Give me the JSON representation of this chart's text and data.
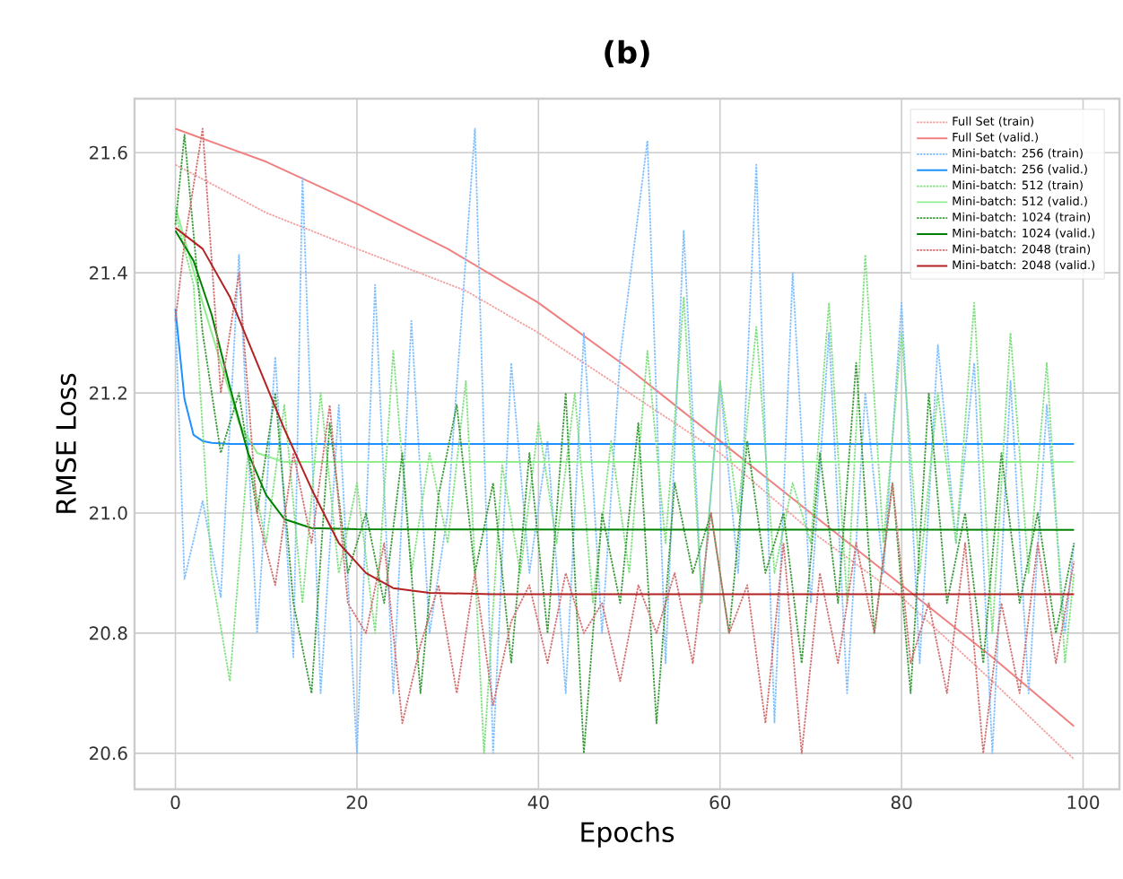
{
  "chart_data": {
    "type": "line",
    "title": "**(b)**",
    "xlabel": "Epochs",
    "ylabel": "RMSE Loss",
    "xlim": [
      -4.5,
      104
    ],
    "ylim": [
      20.54,
      21.69
    ],
    "xticks": [
      0,
      20,
      40,
      60,
      80,
      100
    ],
    "yticks": [
      20.6,
      20.8,
      {
        "value": 21.0,
        "label": "21.0"
      },
      21.2,
      21.4,
      21.6
    ],
    "grid": true,
    "legend": "top right",
    "marker": "none",
    "series": [
      {
        "name": "Full Set (train)",
        "color": "#f4a0a0",
        "line_style": "dotted",
        "x": [
          0,
          10,
          20,
          32,
          40,
          50,
          60,
          70,
          80,
          90,
          99
        ],
        "values": [
          21.58,
          21.5,
          21.44,
          21.37,
          21.3,
          21.2,
          21.1,
          20.97,
          20.86,
          20.72,
          20.59
        ]
      },
      {
        "name": "Full Set (valid.)",
        "color": "#f08080",
        "line_style": "solid",
        "x": [
          0,
          10,
          20,
          30,
          40,
          50,
          60,
          70,
          80,
          90,
          99
        ],
        "values": [
          21.64,
          21.585,
          21.515,
          21.44,
          21.35,
          21.24,
          21.12,
          21.0,
          20.88,
          20.76,
          20.645
        ]
      },
      {
        "name": "Mini-batch: 256 (train)",
        "color": "#7fbfff",
        "line_style": "dotted",
        "x": [
          0,
          1,
          3,
          5,
          7,
          9,
          11,
          13,
          14,
          16,
          18,
          20,
          22,
          24,
          26,
          28,
          30,
          33,
          35,
          37,
          39,
          41,
          43,
          45,
          47,
          49,
          52,
          54,
          56,
          58,
          60,
          62,
          64,
          66,
          68,
          70,
          72,
          74,
          76,
          78,
          80,
          82,
          84,
          86,
          88,
          90,
          92,
          94,
          96,
          98,
          99
        ],
        "values": [
          21.33,
          20.89,
          21.02,
          20.86,
          21.43,
          20.8,
          21.26,
          20.76,
          21.56,
          20.7,
          21.18,
          20.6,
          21.38,
          20.7,
          21.32,
          20.8,
          21.0,
          21.64,
          20.6,
          21.25,
          20.9,
          21.12,
          20.7,
          21.3,
          20.8,
          21.26,
          21.62,
          20.75,
          21.47,
          20.85,
          21.22,
          20.9,
          21.58,
          20.65,
          21.4,
          20.85,
          21.3,
          20.7,
          21.2,
          20.9,
          21.35,
          20.75,
          21.28,
          20.95,
          21.25,
          20.6,
          21.22,
          20.7,
          21.18,
          20.8,
          20.95
        ]
      },
      {
        "name": "Mini-batch: 256 (valid.)",
        "color": "#1e90ff",
        "line_style": "solid",
        "x": [
          0,
          1,
          2,
          3,
          4,
          6,
          99
        ],
        "values": [
          21.34,
          21.19,
          21.13,
          21.12,
          21.117,
          21.115,
          21.115
        ]
      },
      {
        "name": "Mini-batch: 512 (train)",
        "color": "#7ee07e",
        "line_style": "dotted",
        "x": [
          0,
          2,
          4,
          6,
          8,
          10,
          12,
          14,
          16,
          18,
          20,
          22,
          24,
          26,
          28,
          30,
          32,
          34,
          36,
          38,
          40,
          42,
          44,
          46,
          48,
          50,
          52,
          54,
          56,
          58,
          60,
          62,
          64,
          66,
          68,
          70,
          72,
          74,
          76,
          78,
          80,
          82,
          84,
          86,
          88,
          90,
          92,
          94,
          96,
          98,
          99
        ],
        "values": [
          21.5,
          21.38,
          20.9,
          20.72,
          21.1,
          20.95,
          21.18,
          20.85,
          21.2,
          20.9,
          21.05,
          20.8,
          21.27,
          20.9,
          21.1,
          20.95,
          21.22,
          20.6,
          21.08,
          20.9,
          21.15,
          20.95,
          21.2,
          20.85,
          21.12,
          20.9,
          21.27,
          20.95,
          21.36,
          20.85,
          21.22,
          21.0,
          21.31,
          20.9,
          21.05,
          20.95,
          21.35,
          20.85,
          21.43,
          20.95,
          21.3,
          20.9,
          21.2,
          20.95,
          21.35,
          20.8,
          21.3,
          20.9,
          21.25,
          20.75,
          20.9
        ]
      },
      {
        "name": "Mini-batch: 512 (valid.)",
        "color": "#90ee90",
        "line_style": "solid",
        "x": [
          0,
          3,
          5,
          7,
          9,
          12,
          99
        ],
        "values": [
          21.51,
          21.35,
          21.25,
          21.15,
          21.1,
          21.085,
          21.085
        ]
      },
      {
        "name": "Mini-batch: 1024 (train)",
        "color": "#3a9a3a",
        "line_style": "dotted",
        "x": [
          0,
          1,
          3,
          5,
          7,
          9,
          11,
          13,
          15,
          17,
          19,
          21,
          23,
          25,
          27,
          29,
          31,
          33,
          35,
          37,
          39,
          41,
          43,
          45,
          47,
          49,
          51,
          53,
          55,
          57,
          59,
          61,
          63,
          65,
          67,
          69,
          71,
          73,
          75,
          77,
          79,
          81,
          83,
          85,
          87,
          89,
          91,
          93,
          95,
          97,
          99
        ],
        "values": [
          21.48,
          21.63,
          21.3,
          21.1,
          21.2,
          21.0,
          21.2,
          20.85,
          20.7,
          21.15,
          20.9,
          21.0,
          20.85,
          21.1,
          20.7,
          21.03,
          21.18,
          20.9,
          21.05,
          20.75,
          21.1,
          20.8,
          21.2,
          20.6,
          21.0,
          20.85,
          21.15,
          20.65,
          21.05,
          20.9,
          21.0,
          20.8,
          21.12,
          20.9,
          21.0,
          20.75,
          21.1,
          20.85,
          21.25,
          20.8,
          21.05,
          20.7,
          21.2,
          20.85,
          21.0,
          20.75,
          21.1,
          20.85,
          21.0,
          20.8,
          20.95
        ]
      },
      {
        "name": "Mini-batch: 1024 (valid.)",
        "color": "#008000",
        "line_style": "solid",
        "x": [
          0,
          2,
          4,
          6,
          8,
          10,
          12,
          15,
          20,
          99
        ],
        "values": [
          21.47,
          21.42,
          21.33,
          21.21,
          21.1,
          21.03,
          20.99,
          20.975,
          20.973,
          20.972
        ]
      },
      {
        "name": "Mini-batch: 2048 (train)",
        "color": "#d07070",
        "line_style": "dotted",
        "x": [
          0,
          1,
          3,
          5,
          7,
          9,
          11,
          13,
          15,
          17,
          19,
          21,
          23,
          25,
          27,
          29,
          31,
          33,
          35,
          37,
          39,
          41,
          43,
          45,
          47,
          49,
          51,
          53,
          55,
          57,
          59,
          61,
          63,
          65,
          67,
          69,
          71,
          73,
          75,
          77,
          79,
          81,
          83,
          85,
          87,
          89,
          91,
          93,
          95,
          97,
          99
        ],
        "values": [
          21.32,
          21.45,
          21.64,
          21.2,
          21.4,
          21.0,
          20.88,
          21.1,
          20.95,
          21.18,
          20.85,
          20.8,
          20.95,
          20.65,
          20.78,
          20.88,
          20.7,
          20.9,
          20.68,
          20.82,
          20.88,
          20.75,
          20.9,
          20.8,
          20.85,
          20.72,
          20.88,
          20.8,
          20.9,
          20.75,
          21.0,
          20.8,
          20.88,
          20.65,
          20.95,
          20.6,
          20.9,
          20.75,
          20.95,
          20.8,
          21.05,
          20.75,
          20.85,
          20.7,
          20.95,
          20.6,
          20.85,
          20.7,
          20.95,
          20.75,
          20.92
        ]
      },
      {
        "name": "Mini-batch: 2048 (valid.)",
        "color": "#b22222",
        "line_style": "solid",
        "x": [
          0,
          3,
          6,
          9,
          12,
          15,
          18,
          21,
          24,
          28,
          35,
          99
        ],
        "values": [
          21.475,
          21.44,
          21.36,
          21.25,
          21.14,
          21.04,
          20.95,
          20.9,
          20.875,
          20.867,
          20.865,
          20.865
        ]
      }
    ]
  }
}
